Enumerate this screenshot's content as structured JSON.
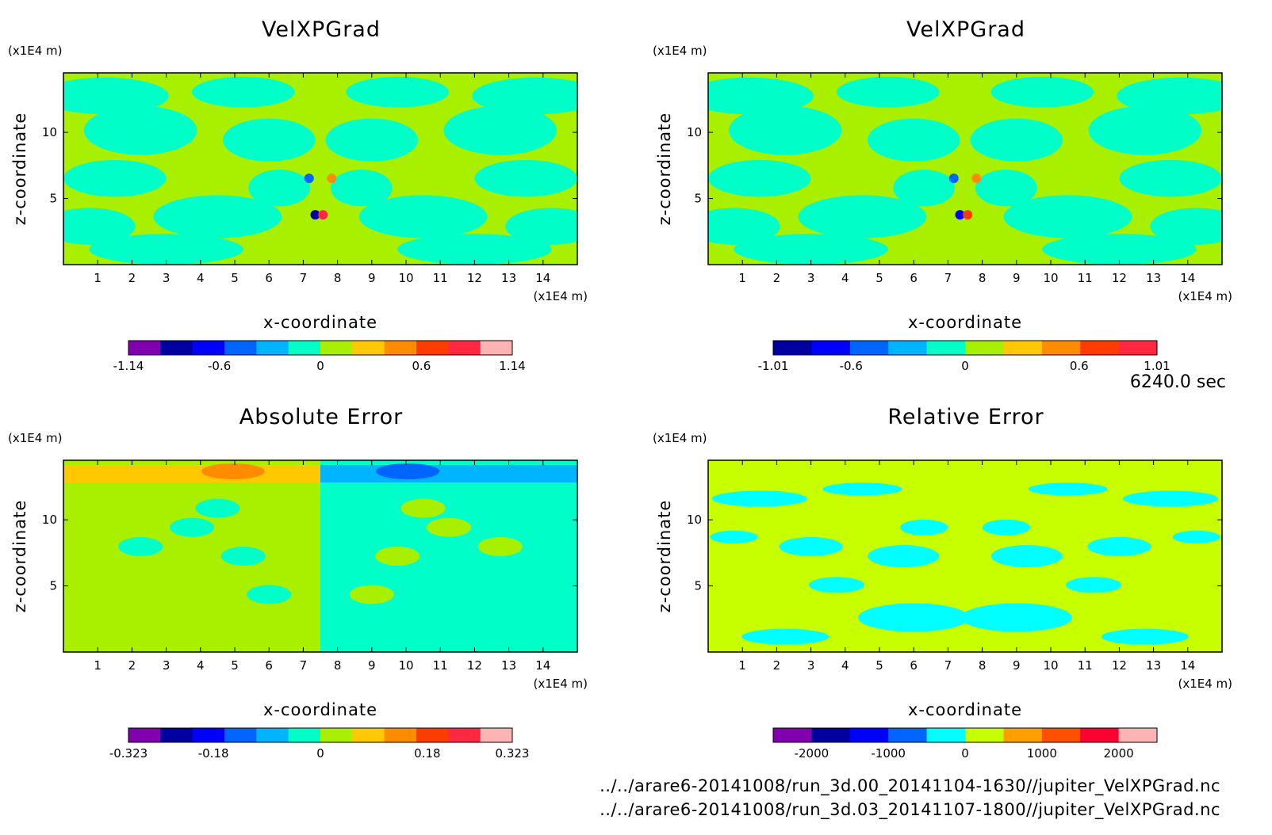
{
  "time_label": "6240.0 sec",
  "files": [
    "../../arare6-20141008/run_3d.00_20141104-1630//jupiter_VelXPGrad.nc",
    "../../arare6-20141008/run_3d.03_20141107-1800//jupiter_VelXPGrad.nc"
  ],
  "chart_data": [
    {
      "type": "heatmap",
      "title": "VelXPGrad",
      "xlabel": "x-coordinate",
      "ylabel": "z-coordinate",
      "x_unit": "(x1E4 m)",
      "y_unit": "(x1E4 m)",
      "xlim": [
        0,
        15
      ],
      "ylim": [
        0,
        14.5
      ],
      "x_ticks": [
        1,
        2,
        3,
        4,
        5,
        6,
        7,
        8,
        9,
        10,
        11,
        12,
        13,
        14
      ],
      "y_ticks": [
        5,
        10
      ],
      "colorbar": {
        "range": [
          -1.14,
          1.14
        ],
        "tick_labels": [
          "-1.14",
          "-0.6",
          "0",
          "0.6",
          "1.14"
        ],
        "tick_values": [
          -1.14,
          -0.6,
          0,
          0.6,
          1.14
        ],
        "colors": [
          "#8000b0",
          "#0000a0",
          "#0000ff",
          "#0064ff",
          "#00b4ff",
          "#00ffc8",
          "#a8f000",
          "#ffc800",
          "#ff8c00",
          "#ff3c00",
          "#ff2840",
          "#ffb4b4"
        ]
      }
    },
    {
      "type": "heatmap",
      "title": "VelXPGrad",
      "xlabel": "x-coordinate",
      "ylabel": "z-coordinate",
      "x_unit": "(x1E4 m)",
      "y_unit": "(x1E4 m)",
      "xlim": [
        0,
        15
      ],
      "ylim": [
        0,
        14.5
      ],
      "x_ticks": [
        1,
        2,
        3,
        4,
        5,
        6,
        7,
        8,
        9,
        10,
        11,
        12,
        13,
        14
      ],
      "y_ticks": [
        5,
        10
      ],
      "colorbar": {
        "range": [
          -1.01,
          1.01
        ],
        "tick_labels": [
          "-1.01",
          "-0.6",
          "0",
          "0.6",
          "1.01"
        ],
        "tick_values": [
          -1.01,
          -0.6,
          0,
          0.6,
          1.01
        ],
        "colors": [
          "#0000a0",
          "#0000ff",
          "#0064ff",
          "#00b4ff",
          "#00ffc8",
          "#a8f000",
          "#ffc800",
          "#ff8c00",
          "#ff3c00",
          "#ff2840"
        ]
      }
    },
    {
      "type": "heatmap",
      "title": "Absolute Error",
      "xlabel": "x-coordinate",
      "ylabel": "z-coordinate",
      "x_unit": "(x1E4 m)",
      "y_unit": "(x1E4 m)",
      "xlim": [
        0,
        15
      ],
      "ylim": [
        0,
        14.5
      ],
      "x_ticks": [
        1,
        2,
        3,
        4,
        5,
        6,
        7,
        8,
        9,
        10,
        11,
        12,
        13,
        14
      ],
      "y_ticks": [
        5,
        10
      ],
      "colorbar": {
        "range": [
          -0.323,
          0.323
        ],
        "tick_labels": [
          "-0.323",
          "-0.18",
          "0",
          "0.18",
          "0.323"
        ],
        "tick_values": [
          -0.323,
          -0.18,
          0,
          0.18,
          0.323
        ],
        "colors": [
          "#8000b0",
          "#0000a0",
          "#0000ff",
          "#0064ff",
          "#00b4ff",
          "#00ffc8",
          "#a8f000",
          "#ffc800",
          "#ff8c00",
          "#ff3c00",
          "#ff2840",
          "#ffb4b4"
        ]
      }
    },
    {
      "type": "heatmap",
      "title": "Relative Error",
      "xlabel": "x-coordinate",
      "ylabel": "z-coordinate",
      "x_unit": "(x1E4 m)",
      "y_unit": "(x1E4 m)",
      "xlim": [
        0,
        15
      ],
      "ylim": [
        0,
        14.5
      ],
      "x_ticks": [
        1,
        2,
        3,
        4,
        5,
        6,
        7,
        8,
        9,
        10,
        11,
        12,
        13,
        14
      ],
      "y_ticks": [
        5,
        10
      ],
      "colorbar": {
        "range": [
          -2500,
          2500
        ],
        "tick_labels": [
          "-2000",
          "-1000",
          "0",
          "1000",
          "2000"
        ],
        "tick_values": [
          -2000,
          -1000,
          0,
          1000,
          2000
        ],
        "colors": [
          "#8000b0",
          "#0000a0",
          "#0000ff",
          "#0064ff",
          "#00ffff",
          "#c8ff00",
          "#ffa000",
          "#ff5000",
          "#ff0030",
          "#ffb4b4"
        ]
      }
    }
  ]
}
